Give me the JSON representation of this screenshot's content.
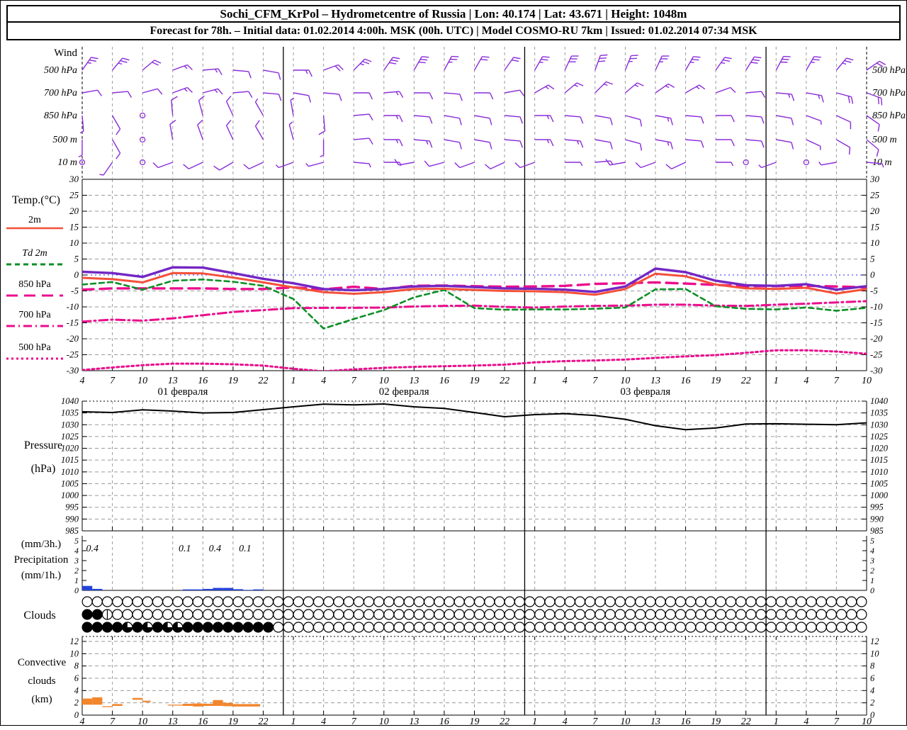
{
  "header": {
    "line1": "Sochi_CFM_KrPol – Hydrometcentre of Russia | Lon: 40.174 | Lat: 43.671 | Height: 1048m",
    "line2": "Forecast for 78h. – Initial data: 01.02.2014 4:00h. MSK (00h. UTC) | Model COSMO-RU 7km | Issued: 01.02.2014 07:34 MSK"
  },
  "chart_data": {
    "type": "meteogram",
    "x_axis": {
      "start_hour": 4,
      "end_hour": 82,
      "hour_tick_step": 3,
      "hour_labels": [
        "4",
        "7",
        "10",
        "13",
        "16",
        "19",
        "22",
        "1",
        "4",
        "7",
        "10",
        "13",
        "16",
        "19",
        "22",
        "1",
        "4",
        "7",
        "10",
        "13",
        "16",
        "19",
        "22",
        "1",
        "4",
        "7",
        "10"
      ],
      "date_labels": [
        {
          "text": "01 февраля",
          "center_hour": 14
        },
        {
          "text": "02 февраля",
          "center_hour": 36
        },
        {
          "text": "03 февраля",
          "center_hour": 60
        }
      ],
      "midnight_hours": [
        24,
        48,
        72
      ],
      "grid_color": "#9a9a9a"
    },
    "wind": {
      "label": "Wind",
      "levels": [
        "500 hPa",
        "700 hPa",
        "850 hPa",
        "500 m",
        "10  m"
      ],
      "barb_color": "#8a2bd8",
      "barbs": {
        "level_500hPa": {
          "dir": [
            35,
            40,
            50,
            70,
            85,
            95,
            100,
            90,
            70,
            45,
            35,
            30,
            28,
            30,
            35,
            30,
            25,
            20,
            22,
            25,
            30,
            35,
            32,
            28,
            30,
            40,
            55
          ],
          "feathers": [
            2.5,
            2.5,
            2,
            1.5,
            1.5,
            1,
            1,
            1.5,
            2,
            2.5,
            3,
            3,
            2.5,
            2,
            2,
            2.5,
            3,
            3,
            2.5,
            2.5,
            2.5,
            2.5,
            3,
            3,
            2.5,
            2.5,
            2
          ]
        },
        "level_700hPa": {
          "dir": [
            80,
            85,
            75,
            70,
            75,
            85,
            95,
            100,
            95,
            90,
            85,
            90,
            95,
            90,
            80,
            60,
            50,
            45,
            50,
            55,
            60,
            70,
            85,
            95,
            100,
            105,
            110
          ],
          "feathers": [
            1,
            1,
            1,
            1.5,
            1.5,
            1,
            1,
            1,
            1,
            1,
            1.5,
            1,
            1,
            1,
            1,
            1.5,
            1.5,
            1.5,
            1.5,
            1.5,
            1.5,
            1,
            1,
            1.5,
            1.5,
            2,
            2
          ]
        },
        "level_850hPa": {
          "dir": [
            175,
            150,
            0,
            355,
            345,
            335,
            330,
            350,
            175,
            85,
            90,
            95,
            100,
            100,
            95,
            90,
            95,
            100,
            105,
            100,
            95,
            90,
            95,
            100,
            110,
            115,
            125
          ],
          "feathers": [
            0.5,
            1,
            -1,
            1,
            1,
            1,
            0.5,
            0.5,
            1,
            1,
            1.5,
            1,
            1,
            1,
            1,
            1.5,
            1,
            1,
            1,
            1.5,
            1,
            1,
            1,
            1,
            0.5,
            1,
            1
          ]
        },
        "level_500m": {
          "dir": [
            180,
            150,
            0,
            350,
            340,
            335,
            330,
            345,
            180,
            85,
            90,
            95,
            100,
            100,
            95,
            90,
            95,
            100,
            105,
            100,
            95,
            90,
            95,
            100,
            115,
            120,
            130
          ],
          "feathers": [
            0.5,
            1,
            -1,
            1,
            1,
            1,
            1,
            0.5,
            0.5,
            1,
            1.5,
            1.5,
            1,
            1,
            1,
            1.5,
            1.5,
            1,
            1,
            1.5,
            1,
            1,
            1,
            1,
            0.5,
            1,
            1
          ]
        },
        "level_10m": {
          "dir": [
            0,
            215,
            0,
            250,
            245,
            240,
            245,
            250,
            255,
            95,
            90,
            260,
            255,
            250,
            245,
            250,
            90,
            85,
            260,
            250,
            245,
            90,
            0,
            250,
            0,
            260,
            95
          ],
          "feathers": [
            -1,
            0.5,
            -1,
            1,
            1,
            1,
            1,
            0.5,
            0.5,
            0.5,
            0.5,
            1,
            1,
            1,
            1,
            1,
            0.5,
            0.5,
            1,
            1,
            1,
            0.5,
            -1,
            0.5,
            -1,
            0.5,
            0.5
          ]
        }
      }
    },
    "temperature": {
      "axis_label": "Temp.(°C)",
      "ylim": [
        -30,
        30
      ],
      "ticks": [
        30,
        25,
        20,
        15,
        10,
        5,
        0,
        -5,
        -10,
        -15,
        -20,
        -25,
        -30
      ],
      "zero_line_color": "#2424ff",
      "legend": [
        {
          "label": "2m",
          "color": "#f4503a",
          "style": "solid"
        },
        {
          "label": "Td  2m",
          "color": "#0d8f26",
          "style": "dashed"
        },
        {
          "label": "850 hPa",
          "color": "#eb0d8c",
          "style": "longdash"
        },
        {
          "label": "700 hPa",
          "color": "#eb0d8c",
          "style": "dashdot"
        },
        {
          "label": "500 hPa",
          "color": "#eb0d8c",
          "style": "dotted"
        }
      ],
      "series": [
        {
          "id": "t500",
          "legend": "500 hPa",
          "color": "#eb0d8c",
          "style": "dotted",
          "width": 3,
          "values": [
            -29.8,
            -29.0,
            -28.3,
            -27.8,
            -27.8,
            -28.0,
            -28.4,
            -29.4,
            -30.2,
            -29.6,
            -29.1,
            -28.8,
            -28.6,
            -28.4,
            -28.1,
            -27.4,
            -27.0,
            -26.8,
            -26.5,
            -26.0,
            -25.5,
            -25.1,
            -24.4,
            -23.6,
            -23.6,
            -24.0,
            -24.7
          ]
        },
        {
          "id": "t700",
          "legend": "700 hPa",
          "color": "#eb0d8c",
          "style": "dashdot",
          "width": 3,
          "values": [
            -14.6,
            -14.0,
            -14.3,
            -13.6,
            -12.6,
            -11.6,
            -11.0,
            -10.4,
            -10.3,
            -10.3,
            -10.2,
            -9.9,
            -9.7,
            -9.6,
            -10.0,
            -10.2,
            -9.9,
            -9.7,
            -9.6,
            -9.3,
            -9.3,
            -9.6,
            -9.7,
            -9.3,
            -9.0,
            -8.6,
            -8.2
          ]
        },
        {
          "id": "t850",
          "legend": "850 hPa",
          "color": "#eb0d8c",
          "style": "longdash",
          "width": 3.4,
          "values": [
            -4.6,
            -4.2,
            -4.2,
            -4.2,
            -4.2,
            -4.4,
            -4.4,
            -3.9,
            -4.5,
            -3.7,
            -4.4,
            -3.4,
            -3.3,
            -3.5,
            -3.7,
            -3.6,
            -3.4,
            -2.8,
            -2.6,
            -2.3,
            -2.7,
            -3.1,
            -3.5,
            -3.5,
            -3.4,
            -3.6,
            -3.9
          ]
        },
        {
          "id": "td2m",
          "legend": "Td 2m",
          "color": "#0d8f26",
          "style": "dashed",
          "width": 2.6,
          "values": [
            -3.0,
            -2.2,
            -4.6,
            -1.8,
            -1.4,
            -2.1,
            -3.4,
            -7.5,
            -16.8,
            -13.8,
            -11.0,
            -7.0,
            -4.7,
            -10.4,
            -10.9,
            -10.8,
            -10.8,
            -10.6,
            -10.2,
            -4.5,
            -4.4,
            -9.8,
            -10.6,
            -10.8,
            -10.2,
            -11.2,
            -10.3
          ]
        },
        {
          "id": "t2m",
          "legend": "2m",
          "color": "#f4503a",
          "style": "solid",
          "width": 3,
          "values": [
            -0.9,
            -1.3,
            -2.3,
            0.6,
            0.5,
            -0.8,
            -2.3,
            -3.9,
            -5.4,
            -5.9,
            -5.4,
            -4.4,
            -4.3,
            -4.7,
            -5.0,
            -5.1,
            -5.4,
            -6.2,
            -4.4,
            0.4,
            -0.4,
            -3.0,
            -4.2,
            -4.4,
            -4.0,
            -5.8,
            -4.4
          ]
        },
        {
          "id": "t_purple_solid",
          "legend": "",
          "color": "#7326c3",
          "style": "solid",
          "width": 3.4,
          "values": [
            1.0,
            0.6,
            -0.6,
            2.4,
            2.3,
            0.6,
            -1.2,
            -2.6,
            -4.4,
            -4.8,
            -4.4,
            -3.6,
            -3.4,
            -3.8,
            -4.2,
            -4.3,
            -4.6,
            -5.3,
            -3.6,
            2.0,
            0.9,
            -1.8,
            -3.2,
            -3.4,
            -2.9,
            -4.6,
            -3.5
          ]
        }
      ]
    },
    "pressure": {
      "label_line1": "Pressure",
      "label_line2": "(hPa)",
      "ylim": [
        985,
        1040
      ],
      "ticks": [
        1040,
        1035,
        1030,
        1025,
        1020,
        1015,
        1010,
        1005,
        1000,
        995,
        990,
        985
      ],
      "color": "#000000",
      "values": [
        1035.5,
        1035.2,
        1036.3,
        1035.8,
        1035.0,
        1035.2,
        1036.4,
        1037.6,
        1038.7,
        1038.4,
        1038.8,
        1037.6,
        1036.9,
        1035.2,
        1033.4,
        1034.3,
        1034.7,
        1033.9,
        1032.3,
        1029.6,
        1027.9,
        1028.6,
        1030.3,
        1030.4,
        1030.2,
        1030.0,
        1030.8
      ]
    },
    "precipitation": {
      "label_lines": [
        "(mm/3h.)",
        "Precipitation",
        "(mm/1h.)"
      ],
      "ticks": [
        5,
        4,
        3,
        2,
        1,
        0
      ],
      "bar_color": "#2343d7",
      "hourly_mm": [
        {
          "h": 4,
          "v": 0.45
        },
        {
          "h": 5,
          "v": 0.15
        },
        {
          "h": 14,
          "v": 0.1
        },
        {
          "h": 15,
          "v": 0.1
        },
        {
          "h": 16,
          "v": 0.15
        },
        {
          "h": 17,
          "v": 0.25
        },
        {
          "h": 18,
          "v": 0.25
        },
        {
          "h": 19,
          "v": 0.12
        },
        {
          "h": 20,
          "v": 0.05
        },
        {
          "h": 21,
          "v": 0.1
        }
      ],
      "labels_3h": [
        {
          "hour": 5.0,
          "text": "0.4"
        },
        {
          "hour": 14.2,
          "text": "0.1"
        },
        {
          "hour": 17.2,
          "text": "0.4"
        },
        {
          "hour": 20.2,
          "text": "0.1"
        }
      ]
    },
    "clouds": {
      "label": "Clouds",
      "count": 78,
      "default_cover": 0,
      "row_top": {
        "values": []
      },
      "row_middle": {
        "values": [
          100,
          100,
          50
        ]
      },
      "row_bottom": {
        "values": [
          100,
          100,
          100,
          100,
          75,
          100,
          75,
          100,
          75,
          75,
          100,
          100,
          100,
          100,
          100,
          100,
          100,
          100,
          100
        ]
      }
    },
    "convective": {
      "label_lines": [
        "Convective",
        "clouds",
        "(km)"
      ],
      "ylim": [
        0,
        13
      ],
      "ticks": [
        12,
        10,
        8,
        6,
        4,
        2,
        0
      ],
      "bar_color": "#f2862c",
      "layers": [
        {
          "s": 4,
          "e": 5,
          "base": 1.7,
          "top": 2.7
        },
        {
          "s": 5,
          "e": 6,
          "base": 1.7,
          "top": 2.9
        },
        {
          "s": 6,
          "e": 7,
          "base": 1.3,
          "top": 1.45
        },
        {
          "s": 7,
          "e": 8,
          "base": 1.5,
          "top": 1.8
        },
        {
          "s": 9,
          "e": 10,
          "base": 2.5,
          "top": 2.8
        },
        {
          "s": 10,
          "e": 10.8,
          "base": 2.1,
          "top": 2.35
        },
        {
          "s": 12.5,
          "e": 14,
          "base": 1.55,
          "top": 1.7
        },
        {
          "s": 14,
          "e": 15,
          "base": 1.5,
          "top": 1.85
        },
        {
          "s": 15,
          "e": 16,
          "base": 1.4,
          "top": 1.9
        },
        {
          "s": 16,
          "e": 17,
          "base": 1.5,
          "top": 1.85
        },
        {
          "s": 17,
          "e": 18,
          "base": 1.5,
          "top": 2.45
        },
        {
          "s": 18,
          "e": 19,
          "base": 1.45,
          "top": 2.0
        },
        {
          "s": 19,
          "e": 21.7,
          "base": 1.4,
          "top": 1.8
        }
      ]
    }
  }
}
